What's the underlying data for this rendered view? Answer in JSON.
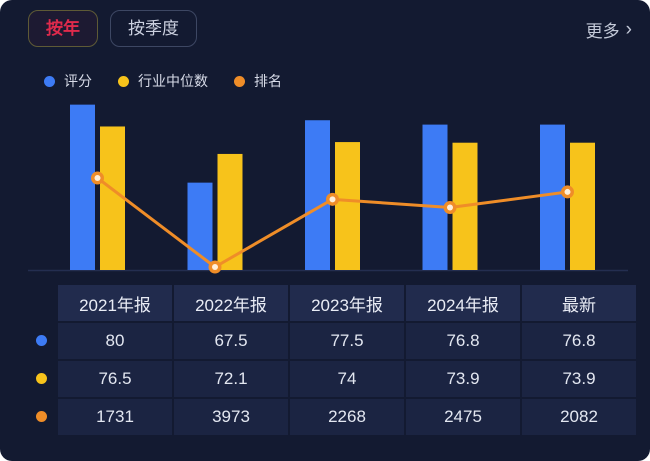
{
  "header": {
    "tabs": [
      {
        "label": "按年",
        "selected": true
      },
      {
        "label": "按季度",
        "selected": false
      }
    ],
    "more": {
      "label": "更多",
      "chevron": "›"
    }
  },
  "legend": {
    "items": [
      {
        "key": "score",
        "label": "评分",
        "color": "#3d7bf5"
      },
      {
        "key": "median",
        "label": "行业中位数",
        "color": "#f7c31b"
      },
      {
        "key": "rank",
        "label": "排名",
        "color": "#ef8d28"
      }
    ]
  },
  "chart_data": {
    "type": "bar+line combo",
    "categories": [
      "2021年报",
      "2022年报",
      "2023年报",
      "2024年报",
      "最新"
    ],
    "series": [
      {
        "key": "score",
        "name": "评分",
        "type": "bar",
        "color": "#3d7bf5",
        "values": [
          80,
          67.5,
          77.5,
          76.8,
          76.8
        ]
      },
      {
        "key": "median",
        "name": "行业中位数",
        "type": "bar",
        "color": "#f7c31b",
        "values": [
          76.5,
          72.1,
          74,
          73.9,
          73.9
        ]
      },
      {
        "key": "rank",
        "name": "排名",
        "type": "line",
        "color": "#ef8d28",
        "values": [
          1731,
          3973,
          2268,
          2475,
          2082
        ],
        "axis": "inverted",
        "marker": "circle-with-light-center"
      }
    ],
    "title": "",
    "xlabel": "",
    "ylabel": "",
    "grid": false,
    "legend_position": "top-left",
    "x_axis_labels_shown": false,
    "notes": "category labels appear only as table headers below the chart"
  },
  "table": {
    "headers": [
      "2021年报",
      "2022年报",
      "2023年报",
      "2024年报",
      "最新"
    ],
    "rows": [
      {
        "key": "score",
        "color": "#3d7bf5",
        "values": [
          "80",
          "67.5",
          "77.5",
          "76.8",
          "76.8"
        ]
      },
      {
        "key": "median",
        "color": "#f7c31b",
        "values": [
          "76.5",
          "72.1",
          "74",
          "73.9",
          "73.9"
        ]
      },
      {
        "key": "rank",
        "color": "#ef8d28",
        "values": [
          "1731",
          "3973",
          "2268",
          "2475",
          "2082"
        ]
      }
    ]
  },
  "colors": {
    "background": "#131a31",
    "accent_blue": "#3d7bf5",
    "accent_yellow": "#f7c31b",
    "accent_orange": "#ef8d28",
    "tab_active_text": "#df2a4c",
    "axis_line": "#242e50",
    "cell_bg": "#1b2442",
    "header_cell_bg": "#212b4d"
  }
}
